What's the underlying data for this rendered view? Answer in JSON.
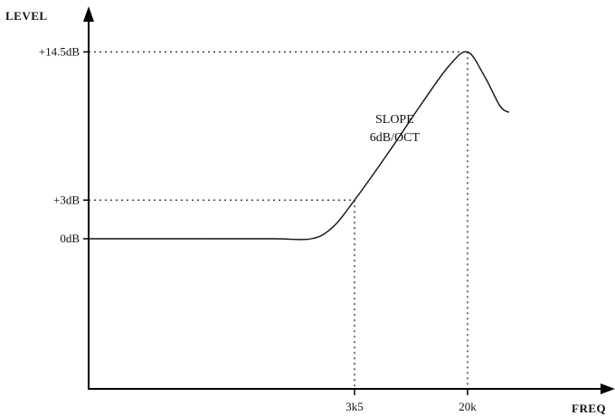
{
  "chart_data": {
    "type": "line",
    "title": "",
    "xlabel": "FREQ",
    "ylabel": "LEVEL",
    "grid": false,
    "y_ticks": [
      {
        "label": "0dB",
        "value": 0
      },
      {
        "label": "+3dB",
        "value": 3
      },
      {
        "label": "+14.5dB",
        "value": 14.5
      }
    ],
    "x_ticks": [
      {
        "label": "3k5",
        "value": 3500
      },
      {
        "label": "20k",
        "value": 20000
      }
    ],
    "series": [
      {
        "points": [
          {
            "x": 350,
            "y": 0
          },
          {
            "x": 1000,
            "y": 0
          },
          {
            "x": 1800,
            "y": 0
          },
          {
            "x": 2500,
            "y": 0.9
          },
          {
            "x": 3500,
            "y": 3
          },
          {
            "x": 6000,
            "y": 6.8
          },
          {
            "x": 10000,
            "y": 10.6
          },
          {
            "x": 15000,
            "y": 13.4
          },
          {
            "x": 20000,
            "y": 14.5
          },
          {
            "x": 26000,
            "y": 12.6
          },
          {
            "x": 33000,
            "y": 10.3
          },
          {
            "x": 38000,
            "y": 9.8
          }
        ]
      }
    ],
    "annotations": [
      {
        "lines": [
          "SLOPE",
          "6dB/OCT"
        ],
        "x": 6500,
        "y": 9
      }
    ]
  }
}
